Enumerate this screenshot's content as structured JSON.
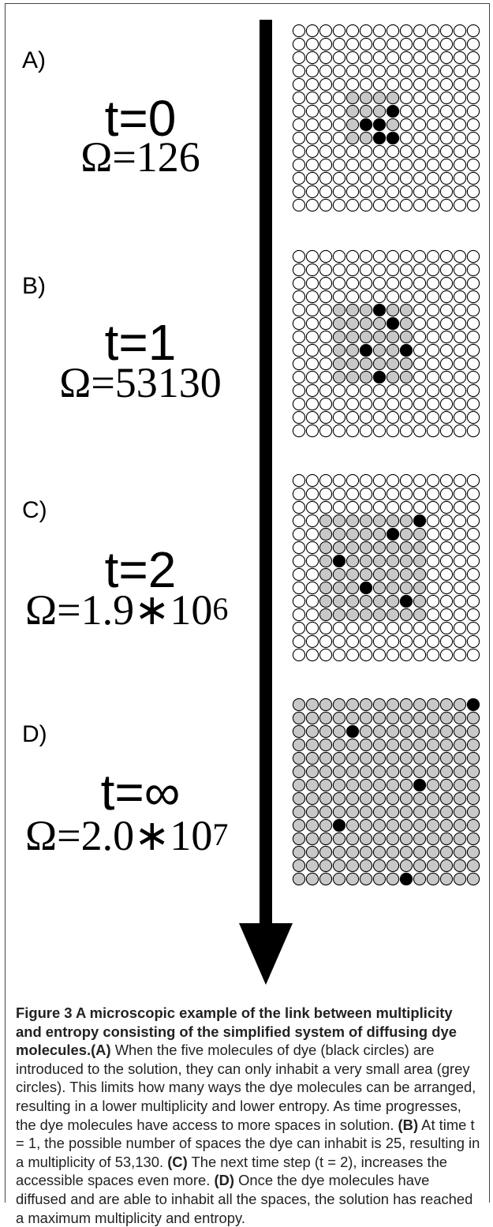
{
  "panels": [
    {
      "label": "A)",
      "time": "t=0",
      "omega_main": "Ω=126",
      "omega_exp": "",
      "gray_region": [
        5,
        4,
        8,
        7
      ],
      "black": [
        [
          6,
          7
        ],
        [
          7,
          5
        ],
        [
          7,
          6
        ],
        [
          8,
          6
        ],
        [
          8,
          7
        ]
      ]
    },
    {
      "label": "B)",
      "time": "t=1",
      "omega_main": "Ω=53130",
      "omega_exp": "",
      "gray_region": [
        4,
        3,
        9,
        8
      ],
      "black": [
        [
          4,
          6
        ],
        [
          5,
          7
        ],
        [
          7,
          5
        ],
        [
          7,
          8
        ],
        [
          9,
          6
        ]
      ]
    },
    {
      "label": "C)",
      "time": "t=2",
      "omega_main": "Ω=1.9∗10",
      "omega_exp": "6",
      "gray_region": [
        3,
        2,
        10,
        9
      ],
      "black": [
        [
          3,
          9
        ],
        [
          4,
          7
        ],
        [
          6,
          3
        ],
        [
          8,
          5
        ],
        [
          9,
          8
        ]
      ]
    },
    {
      "label": "D)",
      "time": "t=∞",
      "omega_main": "Ω=2.0∗10",
      "omega_exp": "7",
      "gray_region": [
        0,
        0,
        13,
        13
      ],
      "black": [
        [
          0,
          13
        ],
        [
          2,
          4
        ],
        [
          6,
          9
        ],
        [
          9,
          3
        ],
        [
          13,
          8
        ]
      ]
    }
  ],
  "colors": {
    "empty": "#ffffff",
    "accessible": "#c8c8c8",
    "dye": "#000000"
  },
  "caption": {
    "title": "Figure 3 A microscopic example of the link between multiplicity and entropy consisting of the simplified system of diffusing dye molecules.",
    "a_tag": "(A)",
    "a_text": " When the five molecules of dye (black circles) are introduced to the solution, they can only inhabit a very small area (grey circles). This limits how many ways the dye molecules can be arranged, resulting in a lower multiplicity and lower entropy. As time progresses, the dye molecules have access to more spaces in solution. ",
    "b_tag": "(B)",
    "b_text": " At time t = 1, the possible number of spaces the dye can inhabit is 25, resulting in a multiplicity of 53,130. ",
    "c_tag": "(C)",
    "c_text": " The next time step (t = 2), increases the accessible spaces even more. ",
    "d_tag": "(D)",
    "d_text": " Once the dye molecules have diffused and are able to inhabit all the spaces, the solution has reached a maximum multiplicity and entropy."
  }
}
